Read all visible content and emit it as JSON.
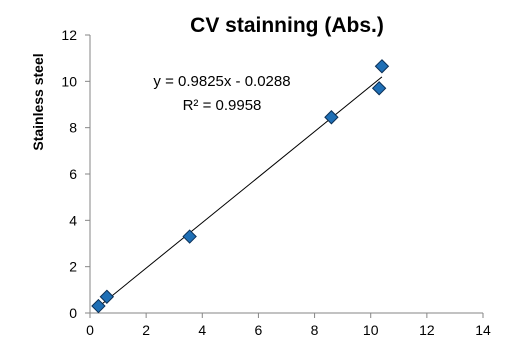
{
  "chart_data": {
    "type": "scatter",
    "title": "CV stainning (Abs.)",
    "xlabel": "",
    "ylabel": "Stainless steel",
    "xlim": [
      0,
      14
    ],
    "ylim": [
      0,
      12
    ],
    "xticks": [
      "0",
      "2",
      "4",
      "6",
      "8",
      "10",
      "12",
      "14"
    ],
    "yticks": [
      "0",
      "2",
      "4",
      "6",
      "8",
      "10",
      "12"
    ],
    "series": [
      {
        "points": [
          {
            "x": 0.3,
            "y": 0.3
          },
          {
            "x": 0.6,
            "y": 0.7
          },
          {
            "x": 3.55,
            "y": 3.3
          },
          {
            "x": 8.6,
            "y": 8.45
          },
          {
            "x": 10.3,
            "y": 9.7
          },
          {
            "x": 10.4,
            "y": 10.65
          }
        ],
        "marker": "diamond",
        "color": "#1f6fb5"
      }
    ],
    "trendline": {
      "type": "linear",
      "slope": 0.9825,
      "intercept": -0.0288,
      "equation": "y = 0.9825x - 0.0288",
      "r2": "R² = 0.9958",
      "color": "#000000"
    },
    "grid": false,
    "legend": "none"
  }
}
